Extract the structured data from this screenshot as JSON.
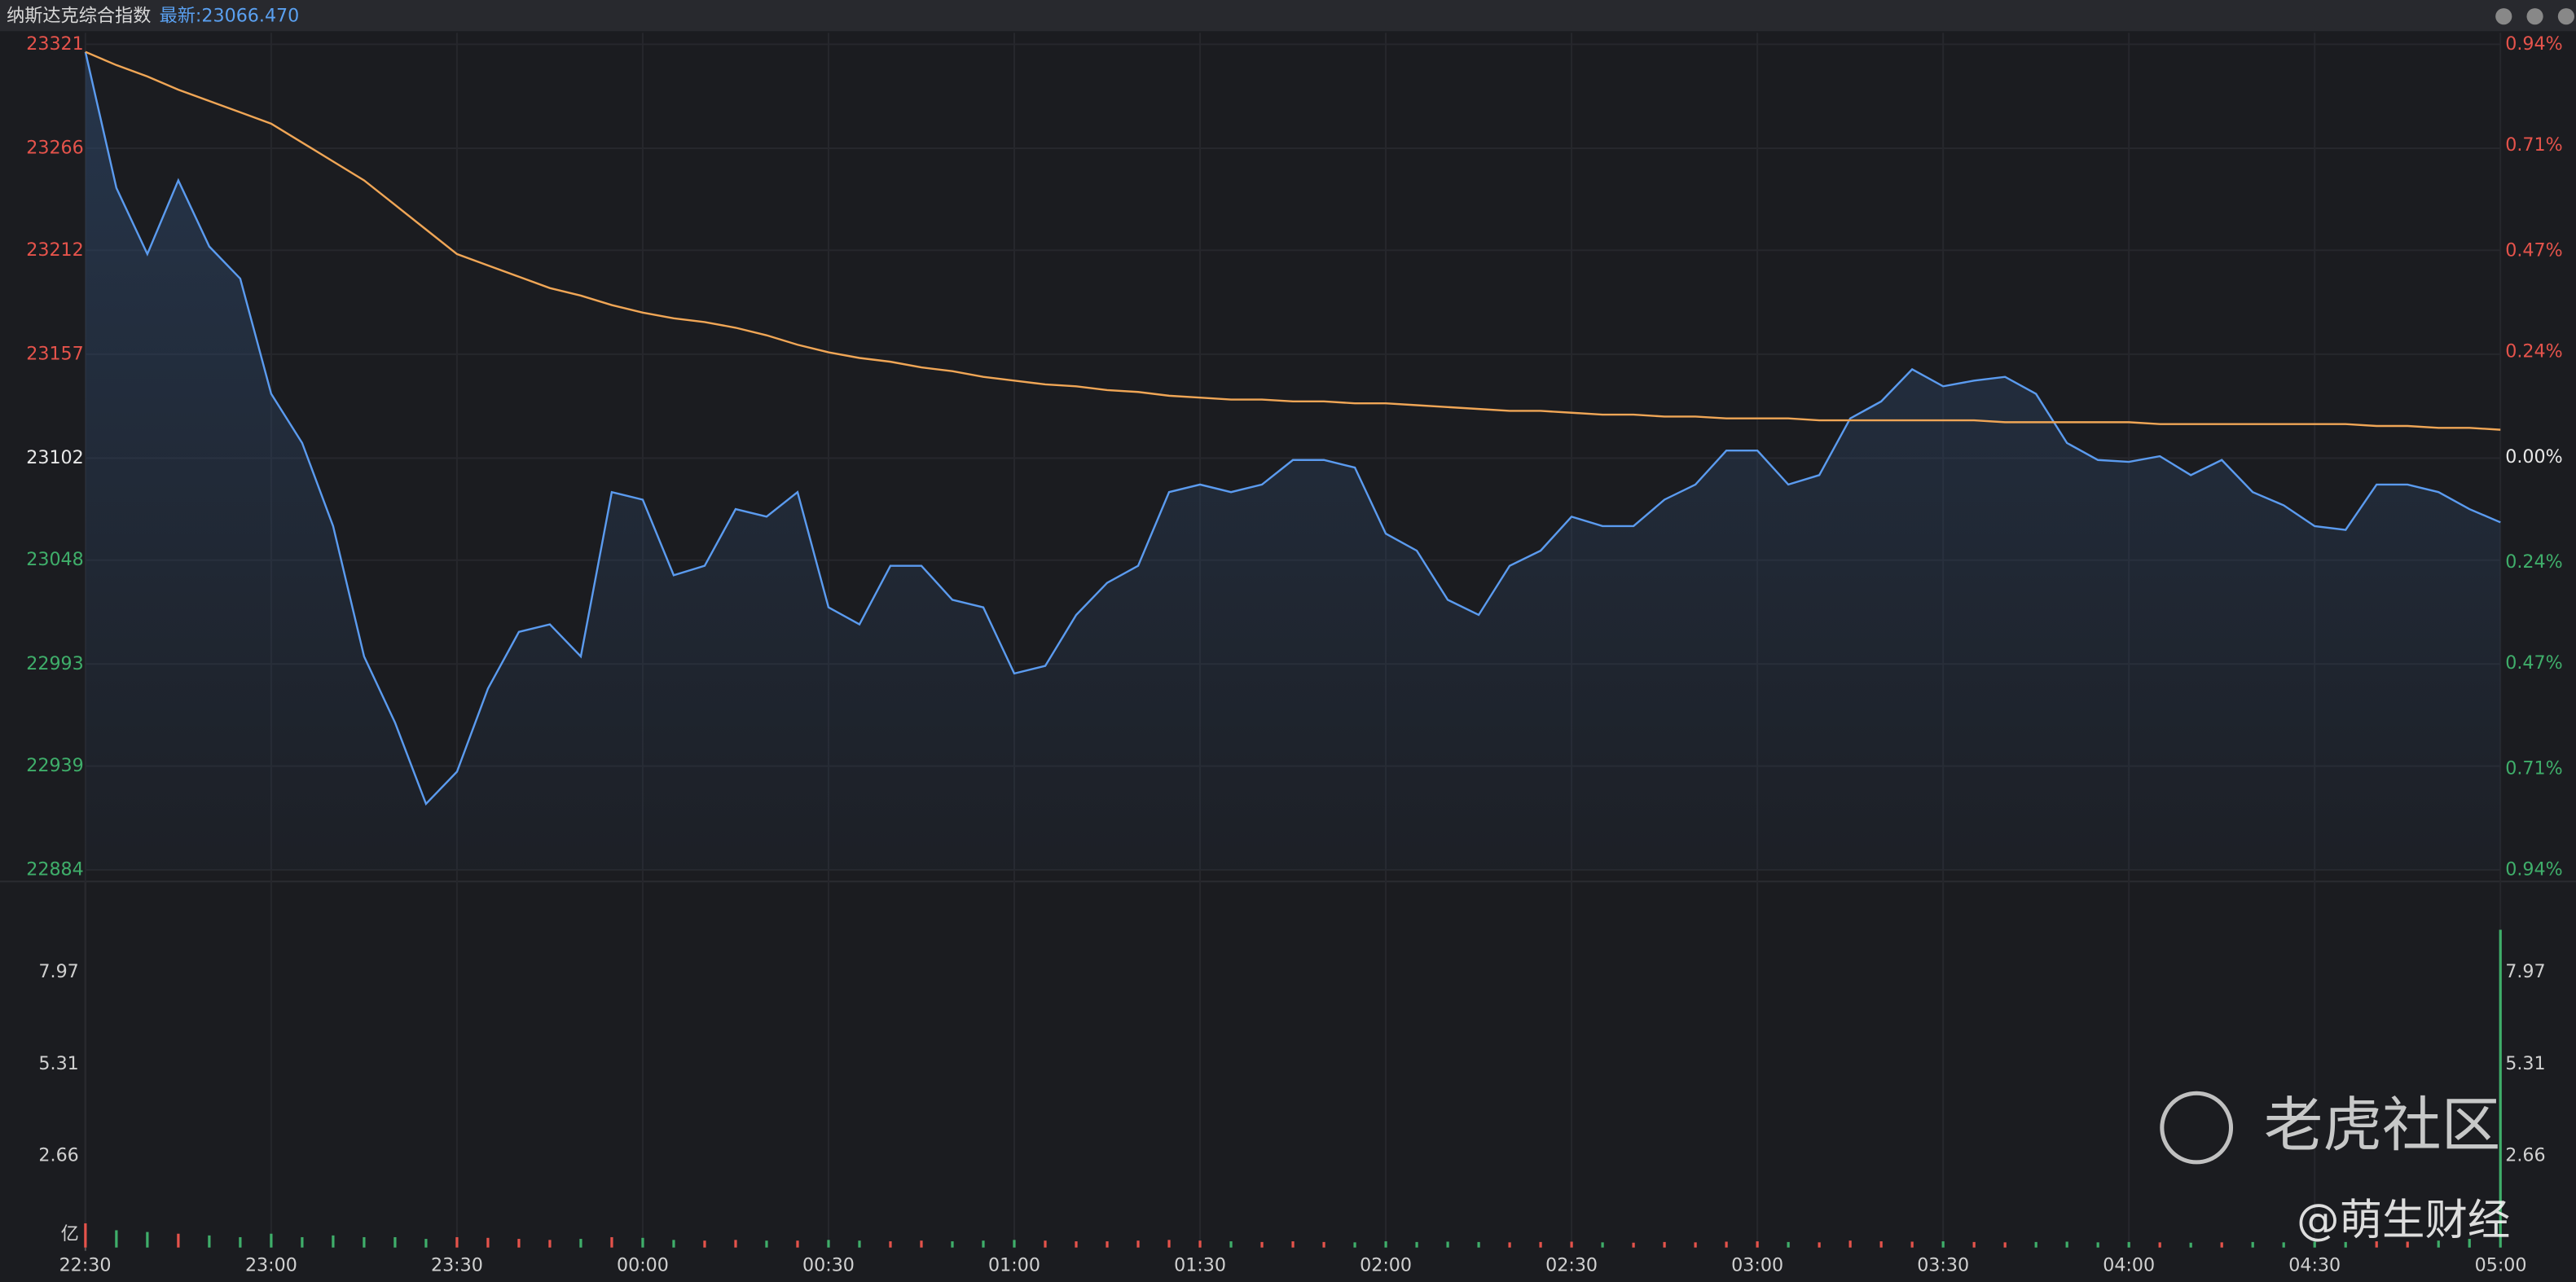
{
  "chart_data": {
    "type": "line",
    "title": "纳斯达克综合指数",
    "latest": "最新:23066.470",
    "x": [
      "22:30",
      "22:35",
      "22:40",
      "22:45",
      "22:50",
      "22:55",
      "23:00",
      "23:05",
      "23:10",
      "23:15",
      "23:20",
      "23:25",
      "23:30",
      "23:35",
      "23:40",
      "23:45",
      "23:50",
      "23:55",
      "00:00",
      "00:05",
      "00:10",
      "00:15",
      "00:20",
      "00:25",
      "00:30",
      "00:35",
      "00:40",
      "00:45",
      "00:50",
      "00:55",
      "01:00",
      "01:05",
      "01:10",
      "01:15",
      "01:20",
      "01:25",
      "01:30",
      "01:35",
      "01:40",
      "01:45",
      "01:50",
      "01:55",
      "02:00",
      "02:05",
      "02:10",
      "02:15",
      "02:20",
      "02:25",
      "02:30",
      "02:35",
      "02:40",
      "02:45",
      "02:50",
      "02:55",
      "03:00",
      "03:05",
      "03:10",
      "03:15",
      "03:20",
      "03:25",
      "03:30",
      "03:35",
      "03:40",
      "03:45",
      "03:50",
      "03:55",
      "04:00",
      "04:05",
      "04:10",
      "04:15",
      "04:20",
      "04:25",
      "04:30",
      "04:35",
      "04:40",
      "04:45",
      "04:50",
      "04:55",
      "05:00"
    ],
    "series": [
      {
        "color": "#5b9bef",
        "values": [
          23317,
          23245,
          23210,
          23249,
          23214,
          23197,
          23136,
          23110,
          23066,
          22997,
          22962,
          22919,
          22936,
          22980,
          23010,
          23014,
          22997,
          23084,
          23080,
          23040,
          23045,
          23075,
          23071,
          23084,
          23023,
          23014,
          23045,
          23045,
          23027,
          23023,
          22988,
          22992,
          23019,
          23036,
          23045,
          23084,
          23088,
          23084,
          23088,
          23101,
          23101,
          23097,
          23062,
          23053,
          23027,
          23019,
          23045,
          23053,
          23071,
          23066,
          23066,
          23080,
          23088,
          23106,
          23106,
          23088,
          23093,
          23123,
          23132,
          23149,
          23140,
          23143,
          23145,
          23136,
          23110,
          23101,
          23100,
          23103,
          23093,
          23101,
          23084,
          23077,
          23066,
          23064,
          23088,
          23088,
          23084,
          23075,
          23068
        ]
      },
      {
        "color": "#f0a656",
        "values": [
          23317,
          23310,
          23304,
          23297,
          23291,
          23285,
          23279,
          23269,
          23259,
          23249,
          23236,
          23223,
          23210,
          23204,
          23198,
          23192,
          23188,
          23183,
          23179,
          23176,
          23174,
          23171,
          23167,
          23162,
          23158,
          23155,
          23153,
          23150,
          23148,
          23145,
          23143,
          23141,
          23140,
          23138,
          23137,
          23135,
          23134,
          23133,
          23133,
          23132,
          23132,
          23131,
          23131,
          23130,
          23129,
          23128,
          23127,
          23127,
          23126,
          23125,
          23125,
          23124,
          23124,
          23123,
          23123,
          23123,
          23122,
          23122,
          23122,
          23122,
          23122,
          23122,
          23121,
          23121,
          23121,
          23121,
          23121,
          23120,
          23120,
          23120,
          23120,
          23120,
          23120,
          23120,
          23119,
          23119,
          23118,
          23118,
          23117
        ]
      }
    ],
    "ylim": [
      22884,
      23321
    ],
    "yticks": [
      23321,
      23266,
      23212,
      23157,
      23102,
      23048,
      22993,
      22939,
      22884
    ],
    "y2lim": [
      -0.94,
      0.94
    ],
    "y2ticks": [
      {
        "value": 0.94,
        "label": "0.94%"
      },
      {
        "value": 0.71,
        "label": "0.71%"
      },
      {
        "value": 0.47,
        "label": "0.47%"
      },
      {
        "value": 0.24,
        "label": "0.24%"
      },
      {
        "value": 0,
        "label": "0.00%"
      },
      {
        "value": -0.24,
        "label": "0.24%"
      },
      {
        "value": -0.47,
        "label": "0.47%"
      },
      {
        "value": -0.71,
        "label": "0.71%"
      },
      {
        "value": -0.94,
        "label": "0.94%"
      }
    ],
    "xticks": [
      "22:30",
      "23:00",
      "23:30",
      "00:00",
      "00:30",
      "01:00",
      "01:30",
      "02:00",
      "02:30",
      "03:00",
      "03:30",
      "04:00",
      "04:30",
      "05:00"
    ],
    "grid": true,
    "up_color": "#e5534b",
    "down_color": "#3fae6a",
    "volume": {
      "values": [
        0.7,
        0.5,
        0.45,
        0.4,
        0.35,
        0.3,
        0.4,
        0.3,
        0.35,
        0.3,
        0.3,
        0.25,
        0.3,
        0.28,
        0.25,
        0.22,
        0.25,
        0.3,
        0.28,
        0.22,
        0.2,
        0.22,
        0.2,
        0.2,
        0.22,
        0.2,
        0.18,
        0.2,
        0.18,
        0.2,
        0.22,
        0.2,
        0.18,
        0.18,
        0.2,
        0.22,
        0.2,
        0.18,
        0.16,
        0.18,
        0.16,
        0.15,
        0.18,
        0.16,
        0.17,
        0.16,
        0.15,
        0.16,
        0.17,
        0.15,
        0.14,
        0.16,
        0.15,
        0.17,
        0.18,
        0.16,
        0.15,
        0.2,
        0.18,
        0.17,
        0.18,
        0.16,
        0.15,
        0.16,
        0.17,
        0.15,
        0.16,
        0.15,
        0.14,
        0.15,
        0.16,
        0.15,
        0.17,
        0.16,
        0.18,
        0.17,
        0.2,
        0.25,
        9.2
      ],
      "ylim": [
        0,
        10.55
      ],
      "yticks": [
        {
          "value": 0,
          "label": "亿"
        },
        2.66,
        5.31,
        7.97
      ]
    },
    "watermark": [
      "老虎社区",
      "@萌生财经"
    ]
  }
}
